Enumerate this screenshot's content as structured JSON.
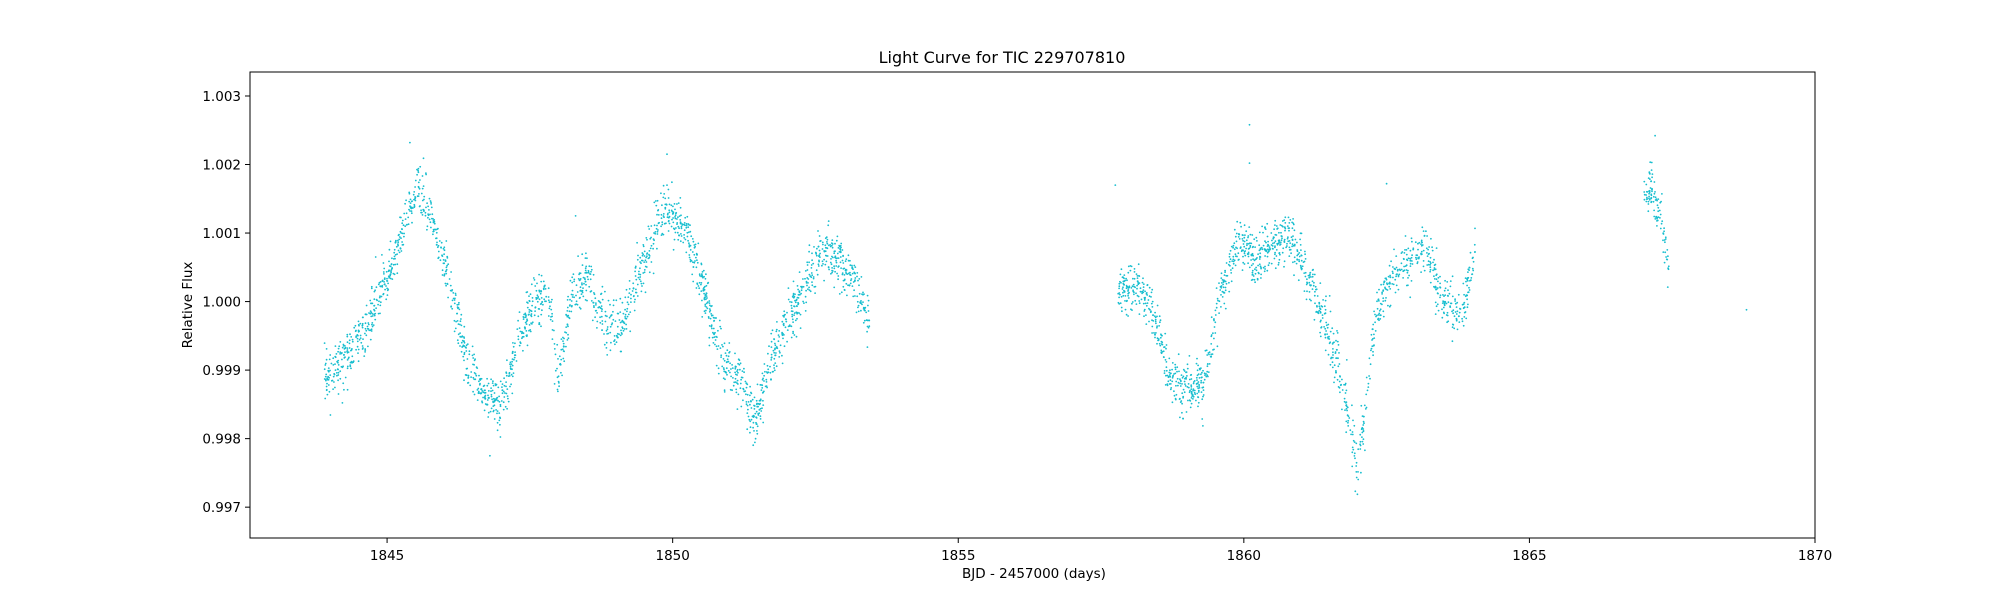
{
  "chart_data": {
    "type": "scatter",
    "title": "Light Curve for TIC 229707810",
    "xlabel": "BJD - 2457000 (days)",
    "ylabel": "Relative Flux",
    "xlim": [
      1842.6,
      1870.0
    ],
    "ylim": [
      0.99655,
      1.00335
    ],
    "xticks": [
      1845,
      1850,
      1855,
      1860,
      1865,
      1870
    ],
    "yticks": [
      0.997,
      0.998,
      0.999,
      1.0,
      1.001,
      1.002,
      1.003
    ],
    "ytick_labels": [
      "0.997",
      "0.998",
      "0.999",
      "1.000",
      "1.001",
      "1.002",
      "1.003"
    ],
    "grid": false,
    "marker_color": "#17becf",
    "segments": [
      {
        "x": [
          1843.9,
          1844.2,
          1844.6,
          1845.0,
          1845.3,
          1845.55,
          1845.8,
          1846.1,
          1846.4,
          1846.7,
          1847.0,
          1847.3,
          1847.6,
          1847.85,
          1848.0,
          1848.2,
          1848.5,
          1848.8,
          1849.1,
          1849.5,
          1849.9,
          1850.2,
          1850.5,
          1850.9,
          1851.2,
          1851.45,
          1851.7,
          1852.0,
          1852.3,
          1852.6,
          1852.9,
          1853.2,
          1853.45
        ],
        "y": [
          0.9989,
          0.9991,
          0.99955,
          1.0003,
          1.0011,
          1.0017,
          1.0012,
          1.0002,
          0.9991,
          0.9986,
          0.99845,
          0.99945,
          1.0,
          1.0,
          0.9988,
          1.0,
          1.0004,
          0.9997,
          0.9996,
          1.0006,
          1.0014,
          1.0011,
          1.0003,
          0.9991,
          0.9988,
          0.99825,
          0.9991,
          0.99965,
          1.0002,
          1.0007,
          1.0006,
          1.0003,
          0.9996
        ]
      },
      {
        "x": [
          1857.8,
          1858.1,
          1858.4,
          1858.7,
          1859.0,
          1859.3,
          1859.6,
          1859.9,
          1860.2,
          1860.5,
          1860.8,
          1861.1,
          1861.4,
          1861.7,
          1862.0,
          1862.3,
          1862.6,
          1862.9,
          1863.2,
          1863.5,
          1863.8,
          1864.05
        ],
        "y": [
          1.0002,
          1.0002,
          0.9999,
          0.9989,
          0.9987,
          0.9988,
          1.0001,
          1.0009,
          1.0006,
          1.0008,
          1.001,
          1.0004,
          0.9997,
          0.99895,
          0.99755,
          0.99975,
          1.0004,
          1.0006,
          1.0008,
          1.0,
          0.9998,
          1.0007
        ]
      },
      {
        "x": [
          1867.0,
          1867.15,
          1867.3,
          1867.45
        ],
        "y": [
          1.0016,
          1.0016,
          1.0012,
          1.0005
        ]
      }
    ],
    "outliers": [
      {
        "x": 1845.4,
        "y": 1.00232
      },
      {
        "x": 1849.9,
        "y": 1.00215
      },
      {
        "x": 1848.3,
        "y": 1.00125
      },
      {
        "x": 1844.8,
        "y": 1.00065
      },
      {
        "x": 1857.75,
        "y": 1.0017
      },
      {
        "x": 1860.1,
        "y": 1.00258
      },
      {
        "x": 1860.1,
        "y": 1.00202
      },
      {
        "x": 1862.5,
        "y": 1.00172
      },
      {
        "x": 1867.2,
        "y": 1.00242
      },
      {
        "x": 1868.8,
        "y": 0.99988
      },
      {
        "x": 1846.8,
        "y": 0.99775
      },
      {
        "x": 1844.5,
        "y": 0.99958
      }
    ],
    "noise_sigma": 0.00018
  }
}
